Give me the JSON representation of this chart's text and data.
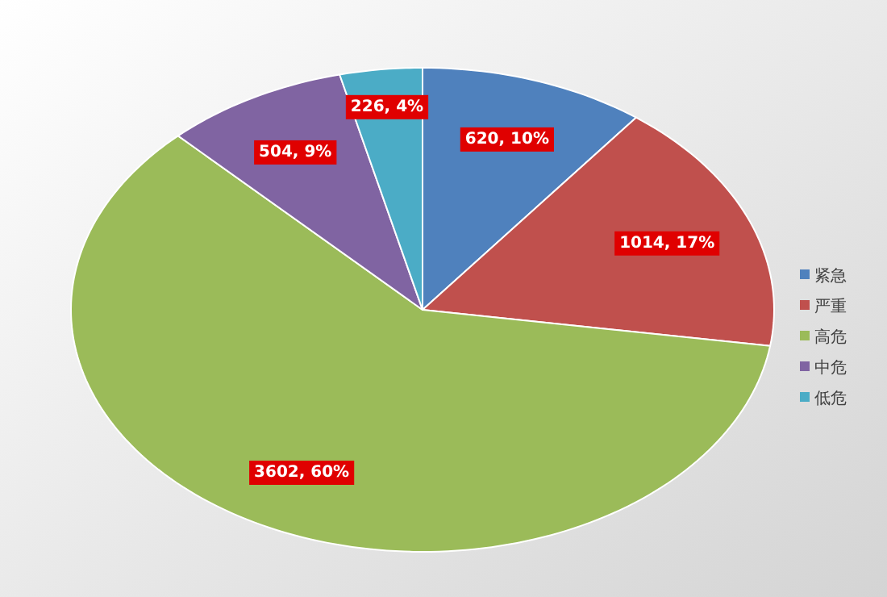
{
  "chart_data": {
    "type": "pie",
    "categories": [
      "紧急",
      "严重",
      "高危",
      "中危",
      "低危"
    ],
    "values": [
      620,
      1014,
      3602,
      504,
      226
    ],
    "colors": [
      "#4f81bd",
      "#c0504d",
      "#9bbb59",
      "#8064a2",
      "#4bacc6"
    ],
    "value_labels": [
      "620, 10%",
      "1014, 17%",
      "3602, 60%",
      "504, 9%",
      "226, 4%"
    ],
    "legend": "right"
  }
}
